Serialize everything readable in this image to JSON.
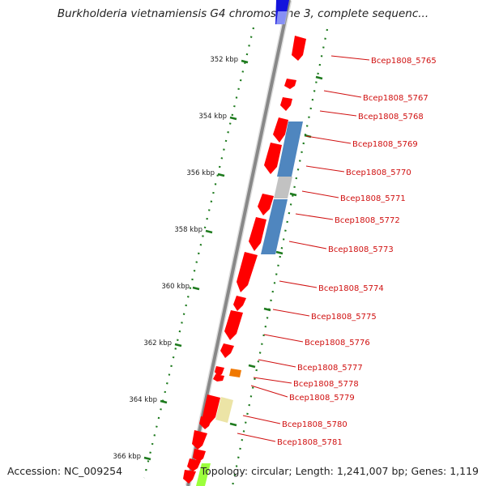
{
  "title": "Burkholderia vietnamiensis G4 chromosome 3, complete sequenc...",
  "footer": {
    "accession": "Accession: NC_009254",
    "summary": "Topology: circular; Length: 1,241,007 bp; Genes: 1,119"
  },
  "ticks": [
    {
      "label": "352 kbp",
      "position_kbp": 352
    },
    {
      "label": "354 kbp",
      "position_kbp": 354
    },
    {
      "label": "356 kbp",
      "position_kbp": 356
    },
    {
      "label": "358 kbp",
      "position_kbp": 358
    },
    {
      "label": "360 kbp",
      "position_kbp": 360
    },
    {
      "label": "362 kbp",
      "position_kbp": 362
    },
    {
      "label": "364 kbp",
      "position_kbp": 364
    },
    {
      "label": "366 kbp",
      "position_kbp": 366
    }
  ],
  "genes": [
    {
      "label": "Bcep1808_5765",
      "color": "#ff0000"
    },
    {
      "label": "Bcep1808_5767",
      "color": "#ff0000"
    },
    {
      "label": "Bcep1808_5768",
      "color": "#ff0000"
    },
    {
      "label": "Bcep1808_5769",
      "color": "#ff0000"
    },
    {
      "label": "Bcep1808_5770",
      "color": "#ff0000"
    },
    {
      "label": "Bcep1808_5771",
      "color": "#ff0000"
    },
    {
      "label": "Bcep1808_5772",
      "color": "#ff0000"
    },
    {
      "label": "Bcep1808_5773",
      "color": "#ff0000"
    },
    {
      "label": "Bcep1808_5774",
      "color": "#ff0000"
    },
    {
      "label": "Bcep1808_5775",
      "color": "#ff0000"
    },
    {
      "label": "Bcep1808_5776",
      "color": "#ff0000"
    },
    {
      "label": "Bcep1808_5777",
      "color": "#ff0000"
    },
    {
      "label": "Bcep1808_5778",
      "color": "#ff0000"
    },
    {
      "label": "Bcep1808_5779",
      "color": "#ff0000"
    },
    {
      "label": "Bcep1808_5780",
      "color": "#ff0000"
    },
    {
      "label": "Bcep1808_5781",
      "color": "#ff0000"
    }
  ],
  "colors": {
    "backbone": "#888888",
    "gene": "#ff0000",
    "feature_blue": "#4f86bf",
    "feature_gray": "#c2c2c2",
    "feature_orange": "#f07800",
    "feature_khaki": "#ece4a6",
    "feature_lime": "#9cff3c",
    "feature_navy": "#1414dc",
    "tick_green": "#1d7a1d",
    "label_red": "#d01010"
  }
}
